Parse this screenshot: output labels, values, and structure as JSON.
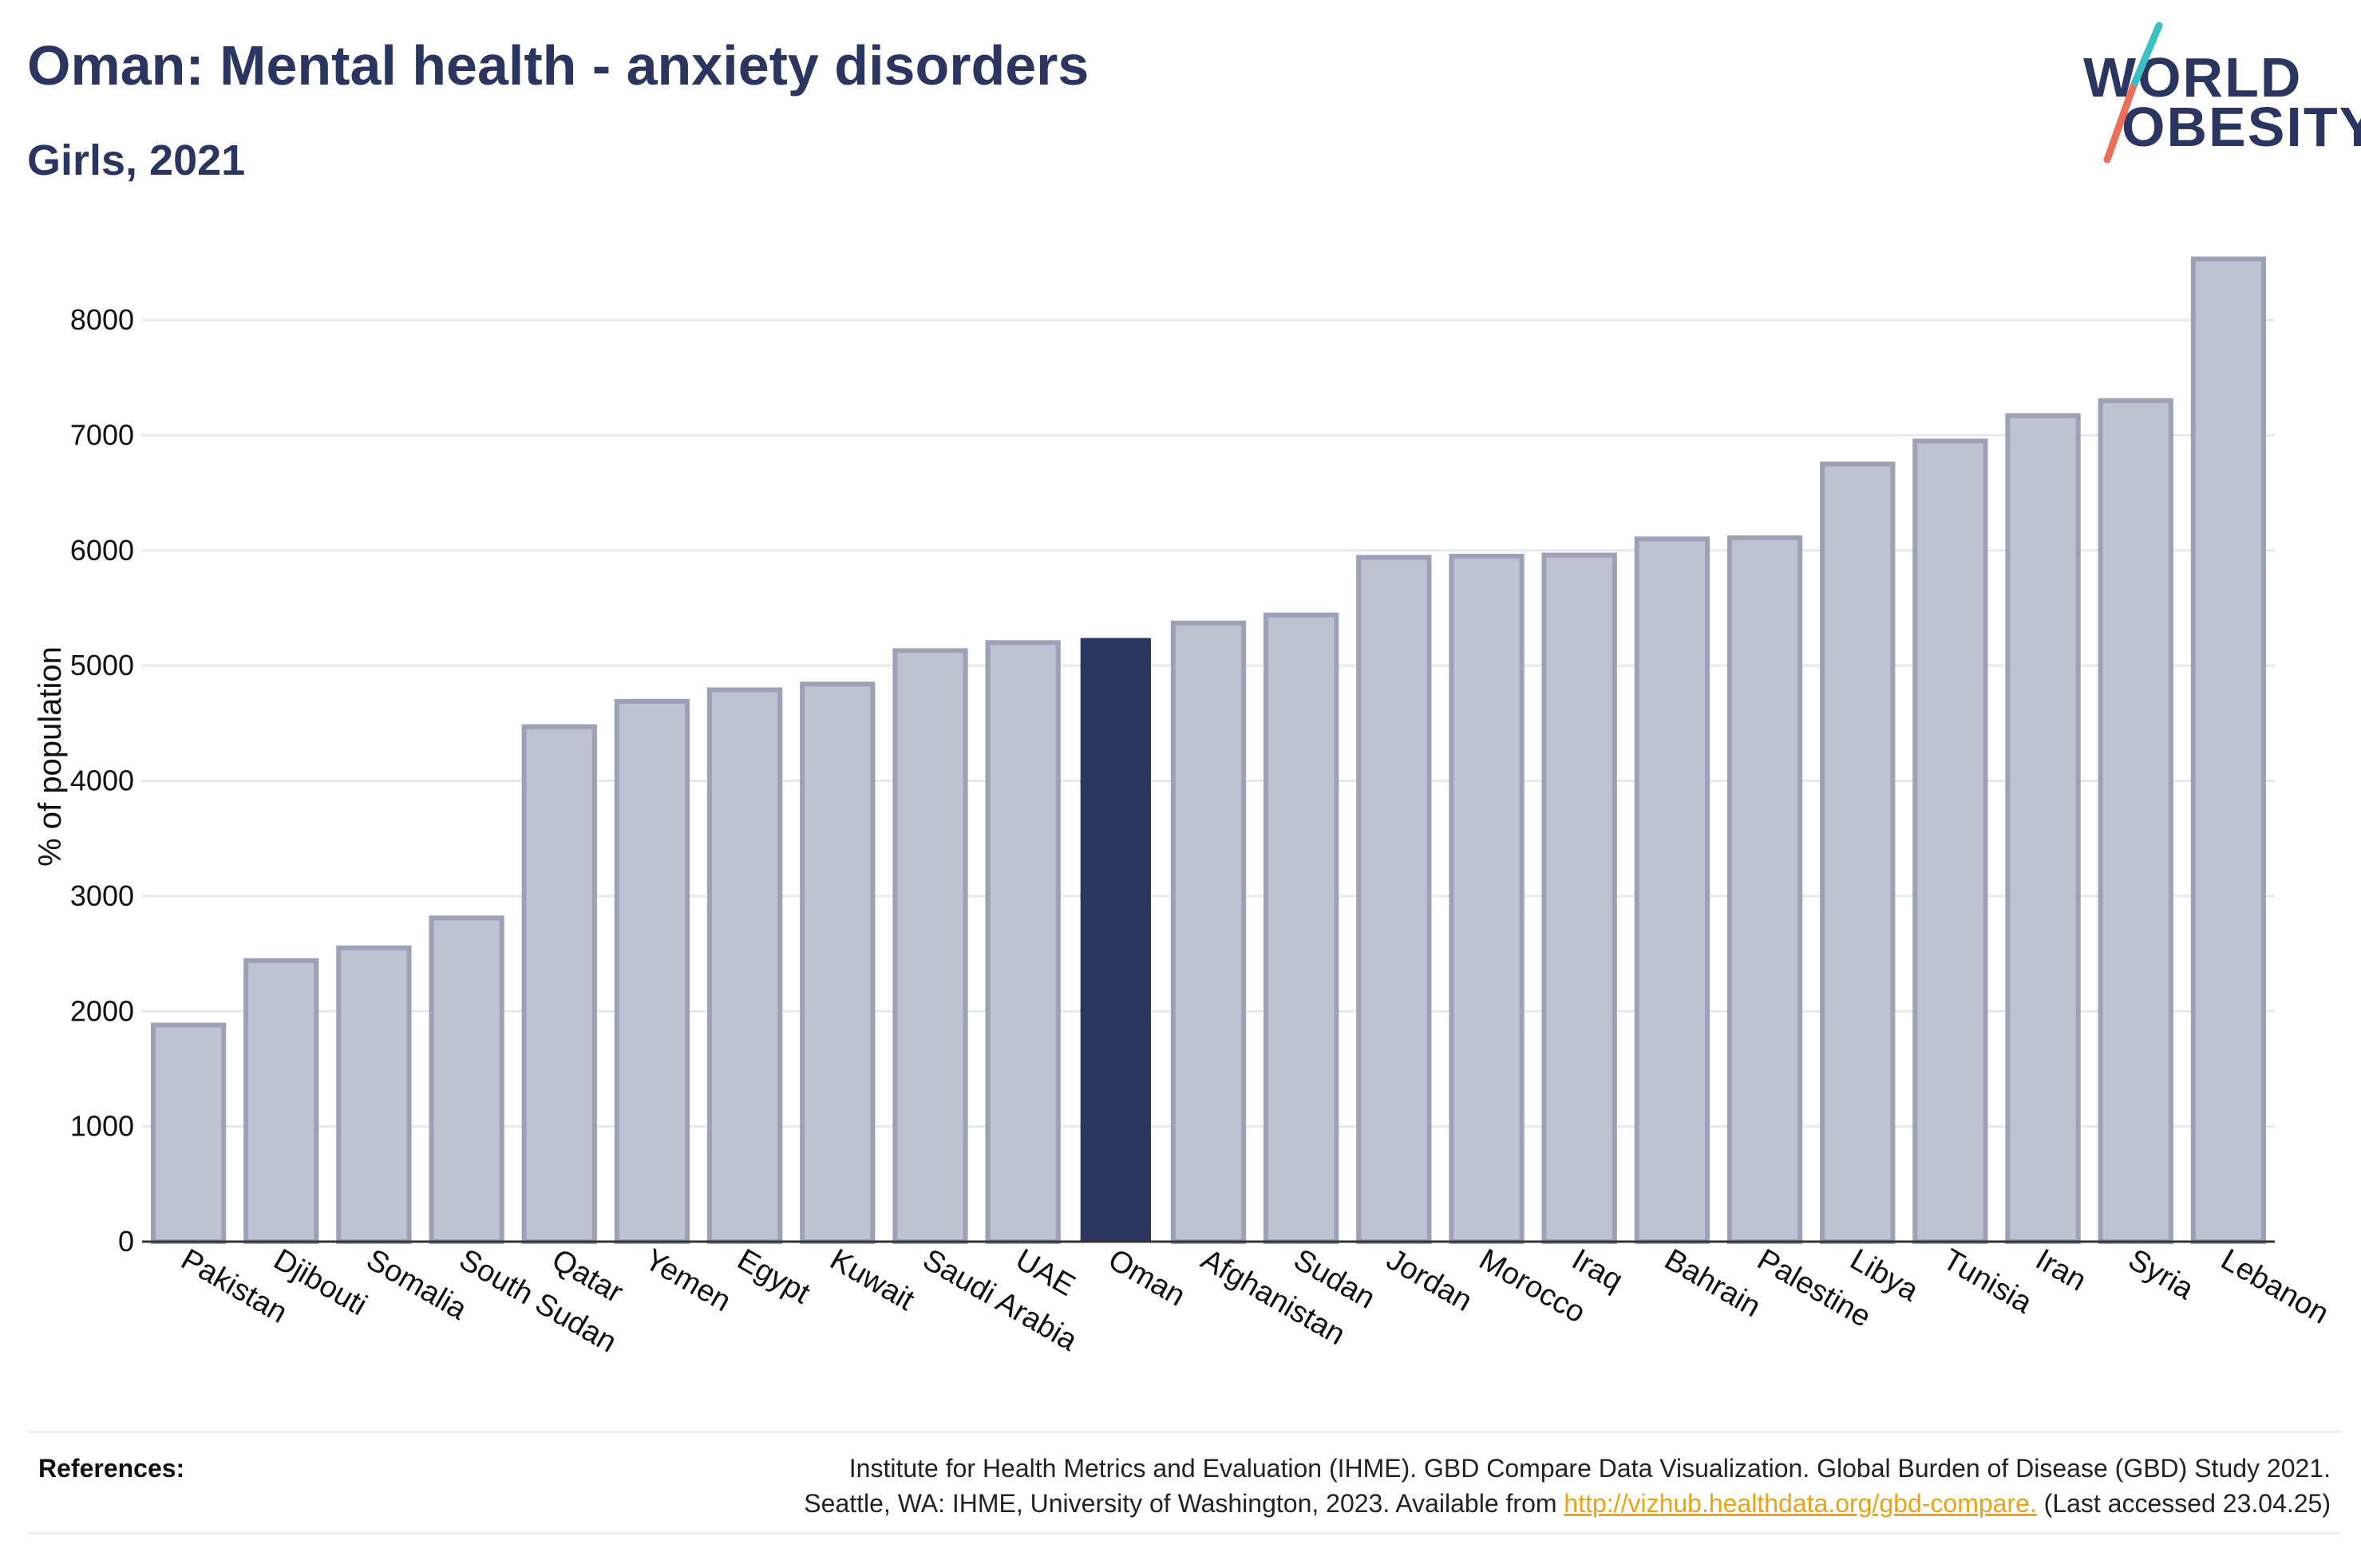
{
  "header": {
    "title": "Oman: Mental health - anxiety disorders",
    "subtitle": "Girls, 2021"
  },
  "logo": {
    "line1": "WORLD",
    "line2": "OBESITY",
    "accent_colors": [
      "#3bbfbf",
      "#e8705a"
    ]
  },
  "chart_data": {
    "type": "bar",
    "categories": [
      "Pakistan",
      "Djibouti",
      "Somalia",
      "South Sudan",
      "Qatar",
      "Yemen",
      "Egypt",
      "Kuwait",
      "Saudi Arabia",
      "UAE",
      "Oman",
      "Afghanistan",
      "Sudan",
      "Jordan",
      "Morocco",
      "Iraq",
      "Bahrain",
      "Palestine",
      "Libya",
      "Tunisia",
      "Iran",
      "Syria",
      "Lebanon"
    ],
    "values": [
      1880,
      2440,
      2550,
      2810,
      4470,
      4690,
      4790,
      4840,
      5130,
      5200,
      5240,
      5370,
      5440,
      5940,
      5950,
      5960,
      6100,
      6110,
      6750,
      6950,
      7170,
      7300,
      8530
    ],
    "highlight": "Oman",
    "ylabel": "% of population",
    "xlabel": "",
    "ylim": [
      0,
      8700
    ],
    "yticks": [
      0,
      1000,
      2000,
      3000,
      4000,
      5000,
      6000,
      7000,
      8000
    ],
    "grid": true,
    "colors": {
      "bar": "#bfc2d0",
      "bar_edge": "#9ca1b8",
      "highlight": "#2a3560",
      "grid": "#e6e8ee",
      "axis": "#333333"
    }
  },
  "references": {
    "label": "References:",
    "line1": "Institute for Health Metrics and Evaluation (IHME). GBD Compare Data Visualization. Global Burden of Disease (GBD) Study 2021.",
    "line2_prefix": "Seattle, WA: IHME, University of Washington, 2023. Available from ",
    "link": "http://vizhub.healthdata.org/gbd-compare.",
    "line2_suffix": " (Last accessed 23.04.25)"
  }
}
